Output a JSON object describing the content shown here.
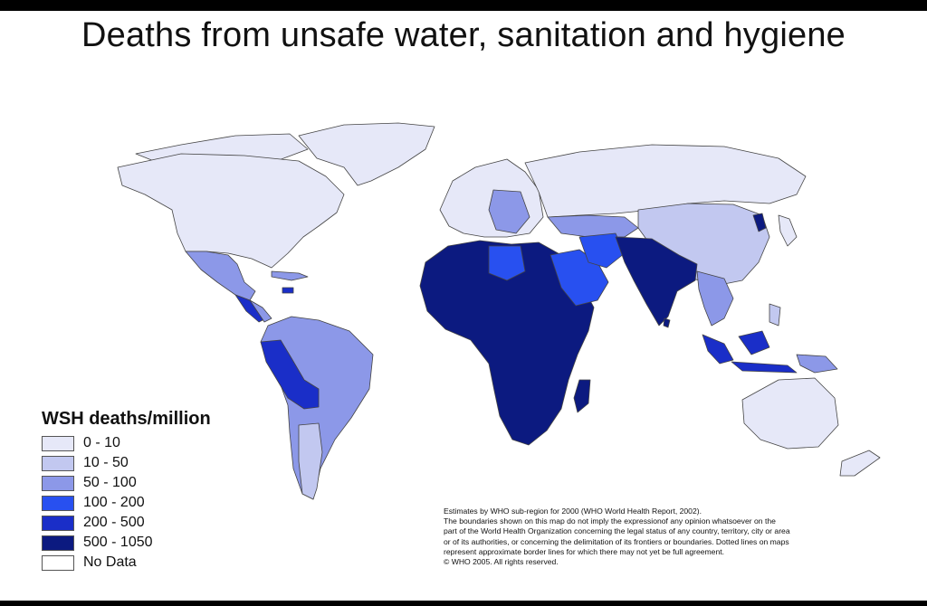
{
  "title": "Deaths from unsafe water, sanitation and hygiene",
  "legend": {
    "title": "WSH deaths/million",
    "items": [
      {
        "label": "0 - 10",
        "color": "#e6e8f8"
      },
      {
        "label": "10 - 50",
        "color": "#c2c8f0"
      },
      {
        "label": "50 - 100",
        "color": "#8c98e8"
      },
      {
        "label": "100 - 200",
        "color": "#2850f0"
      },
      {
        "label": "200 - 500",
        "color": "#1a2ec8"
      },
      {
        "label": "500 - 1050",
        "color": "#0c1a80"
      },
      {
        "label": "No Data",
        "color": "#ffffff"
      }
    ]
  },
  "footnote": {
    "lines": [
      "Estimates by WHO sub-region for 2000 (WHO World Health Report, 2002).",
      "The boundaries shown on this map do not imply the expressionof any opinion whatsoever on the",
      " part of the World Health Organization concerning the legal status of any country, territory, city or area",
      "or of its authorities, or concerning the delimitation of its frontiers or boundaries.  Dotted lines on maps",
      "represent approximate border lines for which there may not yet be full agreement.",
      "© WHO 2005. All rights reserved."
    ]
  }
}
